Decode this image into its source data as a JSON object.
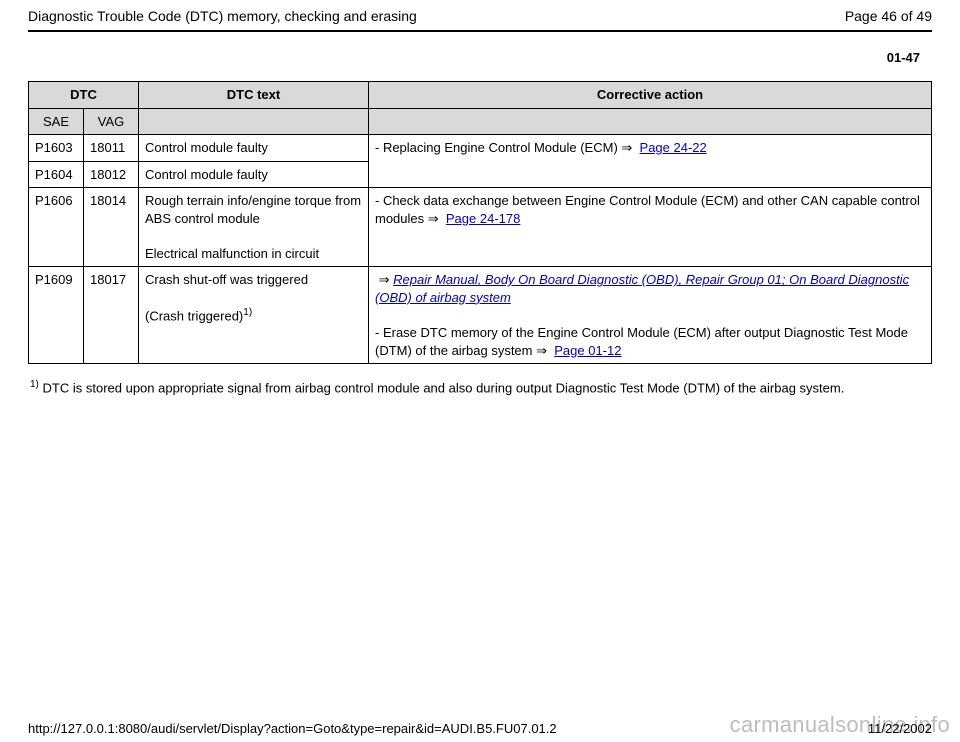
{
  "header": {
    "title": "Diagnostic Trouble Code (DTC) memory, checking and erasing",
    "page_label": "Page 46 of 49"
  },
  "section_number": "01-47",
  "table": {
    "headers": {
      "dtc": "DTC",
      "sae": "SAE",
      "vag": "VAG",
      "dtc_text": "DTC text",
      "corrective_action": "Corrective action"
    },
    "rows": {
      "r1": {
        "sae": "P1603",
        "vag": "18011",
        "text": "Control module faulty"
      },
      "r2": {
        "sae": "P1604",
        "vag": "18012",
        "text": "Control module faulty"
      },
      "action12_prefix": "- Replacing Engine Control Module (ECM)  ",
      "action12_link": "Page 24-22",
      "r3": {
        "sae": "P1606",
        "vag": "18014",
        "text_line1": "Rough terrain info/engine torque from ABS control module",
        "text_line2": "Electrical malfunction in circuit",
        "action_prefix": "- Check data exchange between Engine Control Module (ECM) and other CAN capable control modules  ",
        "action_link": "Page 24-178"
      },
      "r4": {
        "sae": "P1609",
        "vag": "18017",
        "text_line1": "Crash shut-off was triggered",
        "text_line2_prefix": "(Crash triggered)",
        "action_link1": "Repair Manual, Body On Board Diagnostic (OBD), Repair Group 01; On Board Diagnostic (OBD) of airbag system",
        "action_line2_prefix": "- Erase DTC memory of the Engine Control Module (ECM) after output Diagnostic Test Mode (DTM) of the airbag system  ",
        "action_link2": "Page 01-12"
      }
    }
  },
  "footnote": {
    "marker": "1)",
    "text": " DTC is stored upon appropriate signal from airbag control module and also during output Diagnostic Test Mode (DTM) of the airbag system."
  },
  "footer": {
    "url": "http://127.0.0.1:8080/audi/servlet/Display?action=Goto&type=repair&id=AUDI.B5.FU07.01.2",
    "date": "11/22/2002"
  },
  "watermark": "carmanualsonline.info",
  "glyphs": {
    "arrow": "⇒"
  },
  "colors": {
    "header_bg": "#d9d9d9",
    "link": "#0000c8",
    "watermark": "#bdbdbd",
    "border": "#000000"
  }
}
